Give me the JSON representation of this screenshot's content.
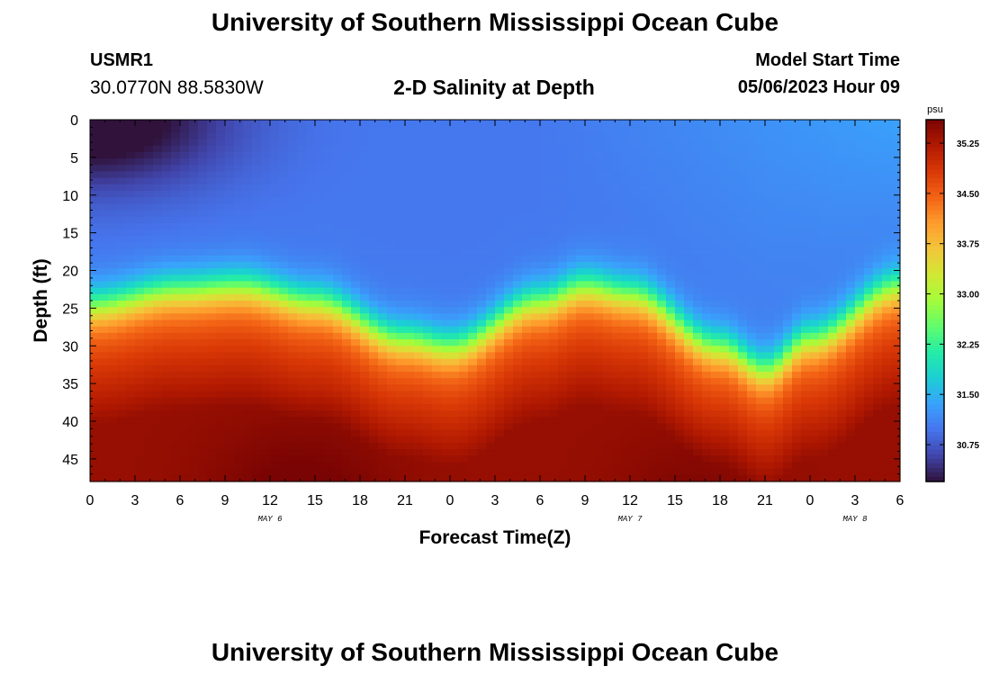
{
  "header": {
    "title": "University of Southern Mississippi Ocean Cube",
    "station_id": "USMR1",
    "station_coords": "30.0770N  88.5830W",
    "plot_title": "2-D Salinity at Depth",
    "model_start_label": "Model Start Time",
    "model_start_value": "05/06/2023 Hour 09"
  },
  "footer": {
    "title": "University of Southern Mississippi Ocean Cube"
  },
  "chart_data": {
    "type": "heatmap",
    "title": "2-D Salinity at Depth",
    "xlabel": "Forecast Time(Z)",
    "ylabel": "Depth (ft)",
    "x_ticks": [
      "0",
      "3",
      "6",
      "9",
      "12",
      "15",
      "18",
      "21",
      "0",
      "3",
      "6",
      "9",
      "12",
      "15",
      "18",
      "21",
      "0",
      "3",
      "6"
    ],
    "x_range_hours": [
      0,
      54
    ],
    "date_labels": [
      {
        "label": "MAY 6",
        "hour": 12
      },
      {
        "label": "MAY 7",
        "hour": 36
      },
      {
        "label": "MAY 8",
        "hour": 51
      }
    ],
    "y_ticks": [
      0,
      5,
      10,
      15,
      20,
      25,
      30,
      35,
      40,
      45
    ],
    "ylim": [
      0,
      48
    ],
    "y_inverted": true,
    "colorbar": {
      "unit": "psu",
      "range": [
        30.2,
        35.6
      ],
      "tick_labels": [
        "35.25",
        "34.50",
        "33.75",
        "33.00",
        "32.25",
        "31.50",
        "30.75"
      ]
    },
    "halocline_depth_ft": [
      {
        "hour": 0,
        "depth": 24.5
      },
      {
        "hour": 6,
        "depth": 22.5
      },
      {
        "hour": 10,
        "depth": 22
      },
      {
        "hour": 15,
        "depth": 24
      },
      {
        "hour": 21,
        "depth": 29
      },
      {
        "hour": 24,
        "depth": 30
      },
      {
        "hour": 30,
        "depth": 24
      },
      {
        "hour": 33,
        "depth": 22
      },
      {
        "hour": 36,
        "depth": 23
      },
      {
        "hour": 42,
        "depth": 30
      },
      {
        "hour": 45,
        "depth": 33
      },
      {
        "hour": 48,
        "depth": 29
      },
      {
        "hour": 54,
        "depth": 22
      }
    ],
    "surface_salinity_psu": 30.3,
    "upper_salinity_psu": 31.0,
    "bottom_salinity_psu": 35.4
  },
  "colors": {
    "colormap": [
      "#30123b",
      "#4145ab",
      "#4675ed",
      "#39a2fc",
      "#1bcfd4",
      "#24eca6",
      "#61fc6c",
      "#a4fc3b",
      "#d1e834",
      "#f3c63a",
      "#fe9b2d",
      "#f36315",
      "#d93806",
      "#b11901",
      "#7a0403"
    ]
  }
}
